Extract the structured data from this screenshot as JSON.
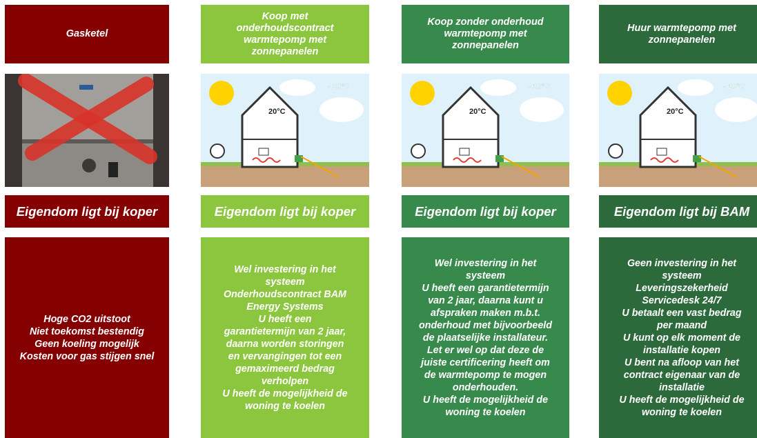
{
  "columns": [
    {
      "header": [
        "Gasketel"
      ],
      "ownership": "Eigendom ligt bij koper",
      "body": [
        "Hoge CO2 uitstoot",
        "Niet toekomst bestendig",
        "Geen koeling mogelijk",
        "Kosten voor gas stijgen snel"
      ]
    },
    {
      "header": [
        "Koop met",
        "onderhoudscontract",
        "warmtepomp met",
        "zonnepanelen"
      ],
      "image_labels": [
        "- 10°C",
        "20°C"
      ],
      "ownership": "Eigendom ligt bij koper",
      "body": [
        "Wel investering in het",
        "systeem",
        "Onderhoudscontract BAM",
        "Energy Systems",
        "U heeft een",
        "garantietermijn van 2 jaar,",
        "daarna worden storingen",
        "en vervangingen tot een",
        "gemaximeerd bedrag",
        "verholpen",
        "U heeft de mogelijkheid de",
        "woning te koelen"
      ]
    },
    {
      "header": [
        "Koop zonder onderhoud",
        "warmtepomp met",
        "zonnepanelen"
      ],
      "image_labels": [
        "- 10°C",
        "20°C"
      ],
      "ownership": "Eigendom ligt bij koper",
      "body": [
        "Wel investering in het",
        "systeem",
        "U heeft een garantietermijn",
        "van 2 jaar, daarna kunt u",
        "afspraken maken m.b.t.",
        "onderhoud met bijvoorbeeld",
        "de plaatselijke installateur.",
        "Let er wel op dat deze de",
        "juiste certificering heeft om",
        "de warmtepomp te mogen",
        "onderhouden.",
        "U heeft de mogelijkheid de",
        "woning te koelen"
      ]
    },
    {
      "header": [
        "Huur warmtepomp met",
        "zonnepanelen"
      ],
      "image_labels": [
        "- 10°C",
        "20°C"
      ],
      "ownership": "Eigendom ligt bij BAM",
      "body": [
        "Geen investering in het",
        "systeem",
        "Leveringszekerheid",
        "Servicedesk 24/7",
        "U betaalt een vast bedrag",
        "per maand",
        "U kunt op elk moment de",
        "installatie kopen",
        "U bent na afloop van het",
        "contract eigenaar van de",
        "installatie",
        "U heeft de mogelijkheid de",
        "woning te koelen"
      ]
    }
  ]
}
